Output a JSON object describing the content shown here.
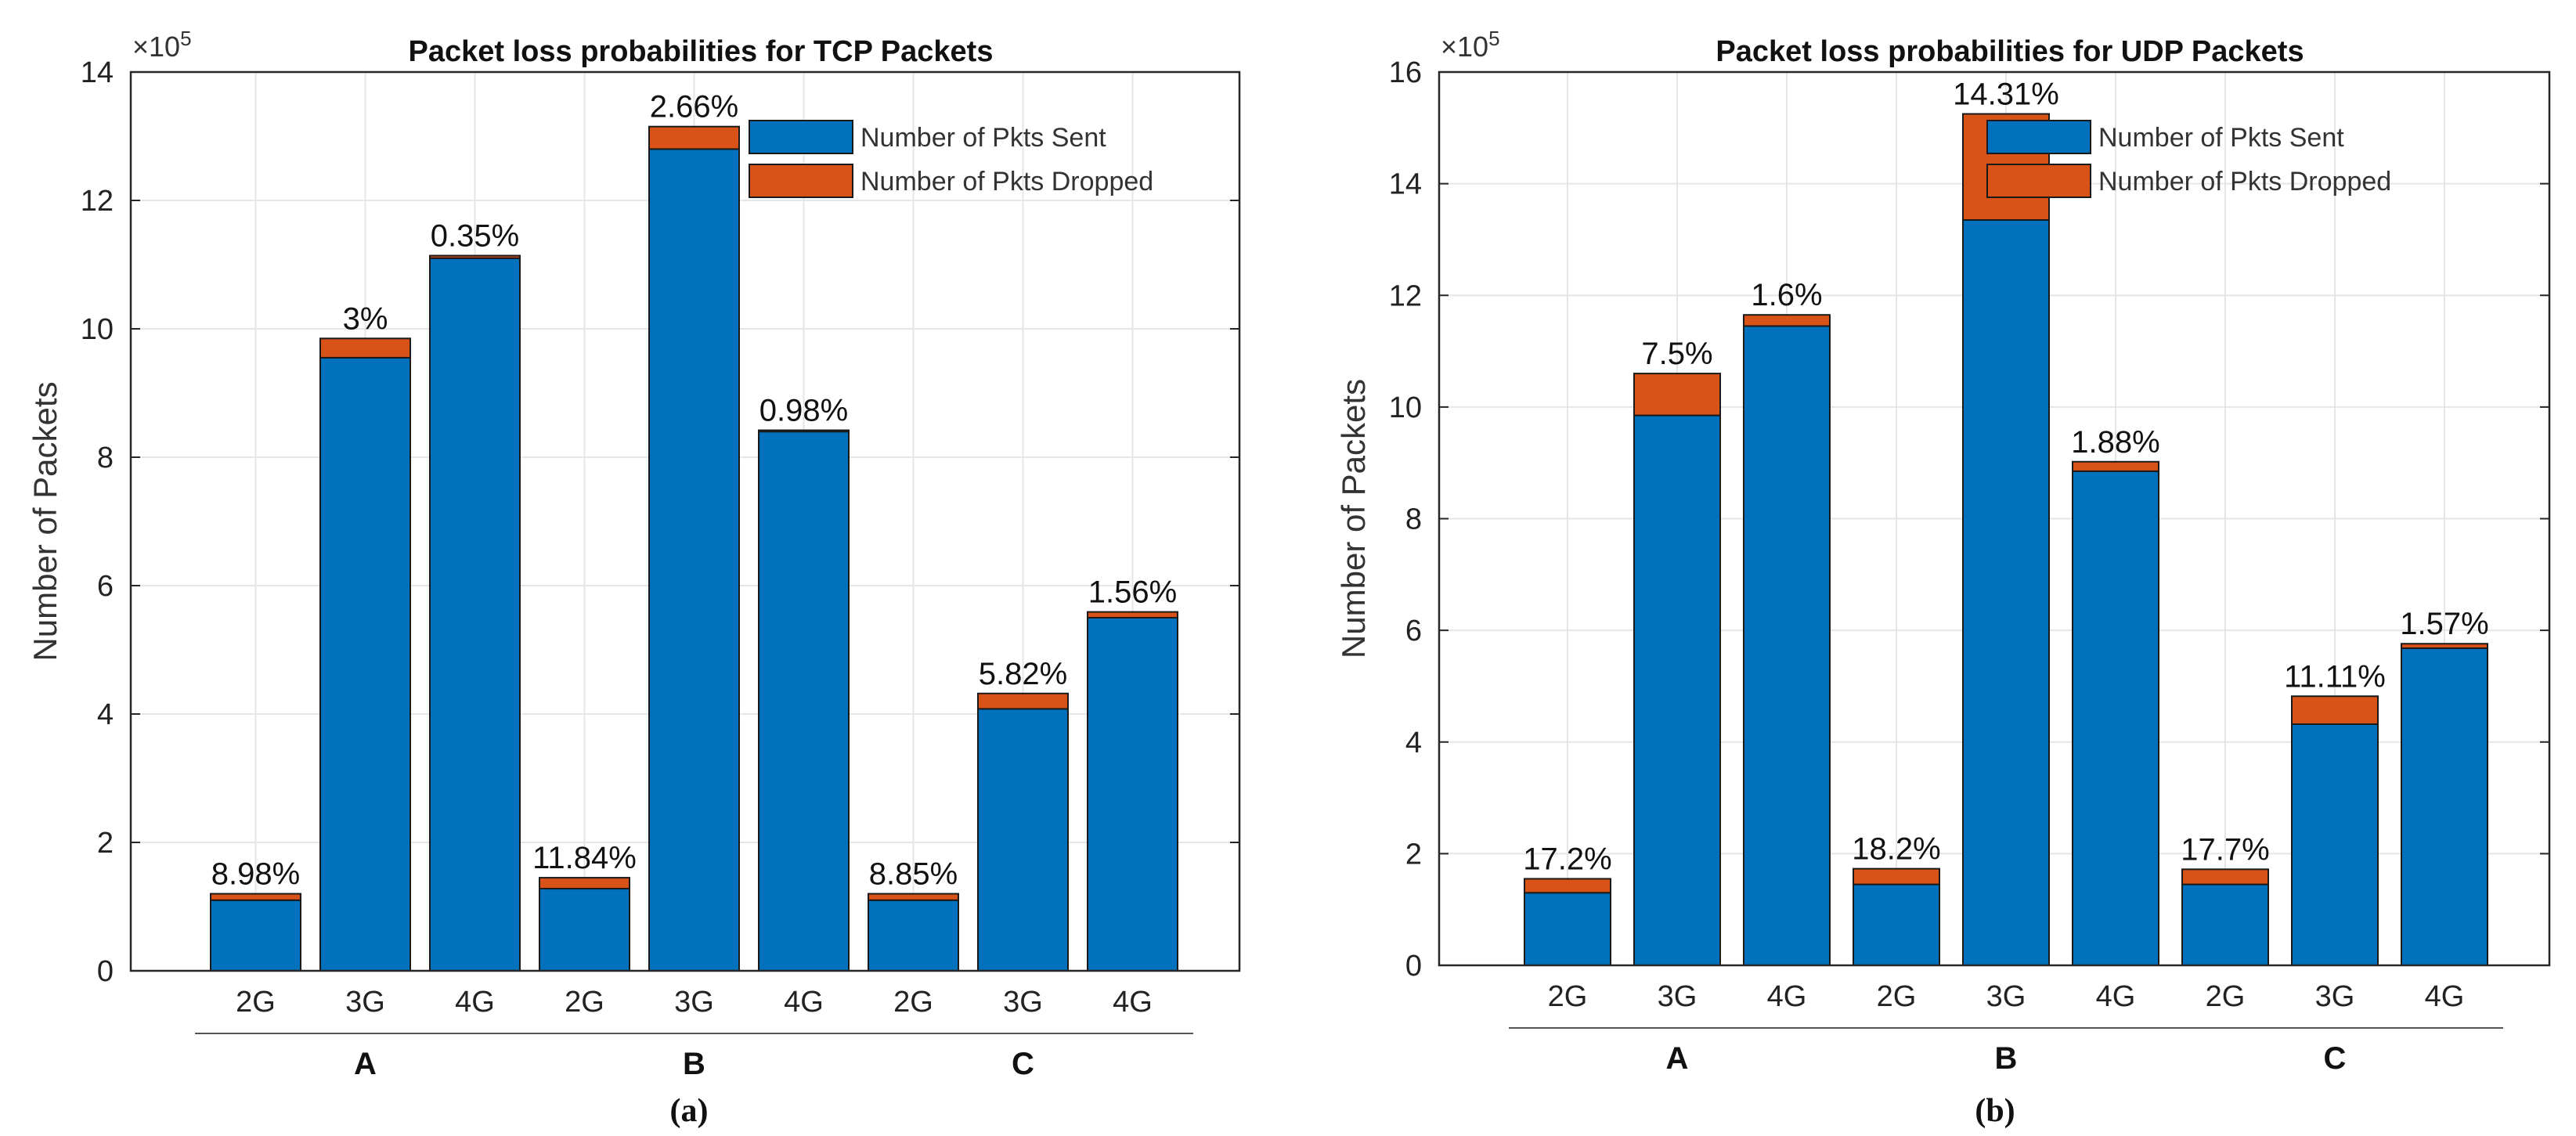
{
  "colors": {
    "sent": "#0072BD",
    "dropped": "#D95319",
    "grid": "#e6e6e6",
    "axis": "#262626"
  },
  "chart_data": [
    {
      "type": "bar",
      "stacked": true,
      "panel_label": "(a)",
      "title": "Packet loss probabilities for TCP Packets",
      "xlabel": "",
      "ylabel": "Number of Packets",
      "y_exponent_base": "×10",
      "y_exponent_power": "5",
      "ylim": [
        0,
        14
      ],
      "yticks": [
        0,
        2,
        4,
        6,
        8,
        10,
        12,
        14
      ],
      "grid": true,
      "legend_position": "top-right",
      "groups": [
        {
          "name": "A",
          "categories": [
            "2G",
            "3G",
            "4G"
          ]
        },
        {
          "name": "B",
          "categories": [
            "2G",
            "3G",
            "4G"
          ]
        },
        {
          "name": "C",
          "categories": [
            "2G",
            "3G",
            "4G"
          ]
        }
      ],
      "series": [
        {
          "name": "Number of Pkts Sent",
          "color": "#0072BD",
          "values": [
            1.1,
            9.55,
            11.1,
            1.28,
            12.8,
            8.4,
            1.1,
            4.08,
            5.5
          ]
        },
        {
          "name": "Number of Pkts Dropped",
          "color": "#D95319",
          "values": [
            0.1,
            0.3,
            0.04,
            0.17,
            0.35,
            0.02,
            0.1,
            0.24,
            0.09
          ]
        }
      ],
      "data_labels": [
        "8.98%",
        "3%",
        "0.35%",
        "11.84%",
        "2.66%",
        "0.98%",
        "8.85%",
        "5.82%",
        "1.56%"
      ]
    },
    {
      "type": "bar",
      "stacked": true,
      "panel_label": "(b)",
      "title": "Packet loss probabilities for UDP Packets",
      "xlabel": "",
      "ylabel": "Number of Packets",
      "y_exponent_base": "×10",
      "y_exponent_power": "5",
      "ylim": [
        0,
        16
      ],
      "yticks": [
        0,
        2,
        4,
        6,
        8,
        10,
        12,
        14,
        16
      ],
      "grid": true,
      "legend_position": "top-right",
      "groups": [
        {
          "name": "A",
          "categories": [
            "2G",
            "3G",
            "4G"
          ]
        },
        {
          "name": "B",
          "categories": [
            "2G",
            "3G",
            "4G"
          ]
        },
        {
          "name": "C",
          "categories": [
            "2G",
            "3G",
            "4G"
          ]
        }
      ],
      "series": [
        {
          "name": "Number of Pkts Sent",
          "color": "#0072BD",
          "values": [
            1.3,
            9.85,
            11.45,
            1.45,
            13.35,
            8.85,
            1.45,
            4.32,
            5.68
          ]
        },
        {
          "name": "Number of Pkts Dropped",
          "color": "#D95319",
          "values": [
            0.25,
            0.75,
            0.2,
            0.28,
            1.9,
            0.17,
            0.27,
            0.5,
            0.08
          ]
        }
      ],
      "data_labels": [
        "17.2%",
        "7.5%",
        "1.6%",
        "18.2%",
        "14.31%",
        "1.88%",
        "17.7%",
        "11.11%",
        "1.57%"
      ]
    }
  ]
}
